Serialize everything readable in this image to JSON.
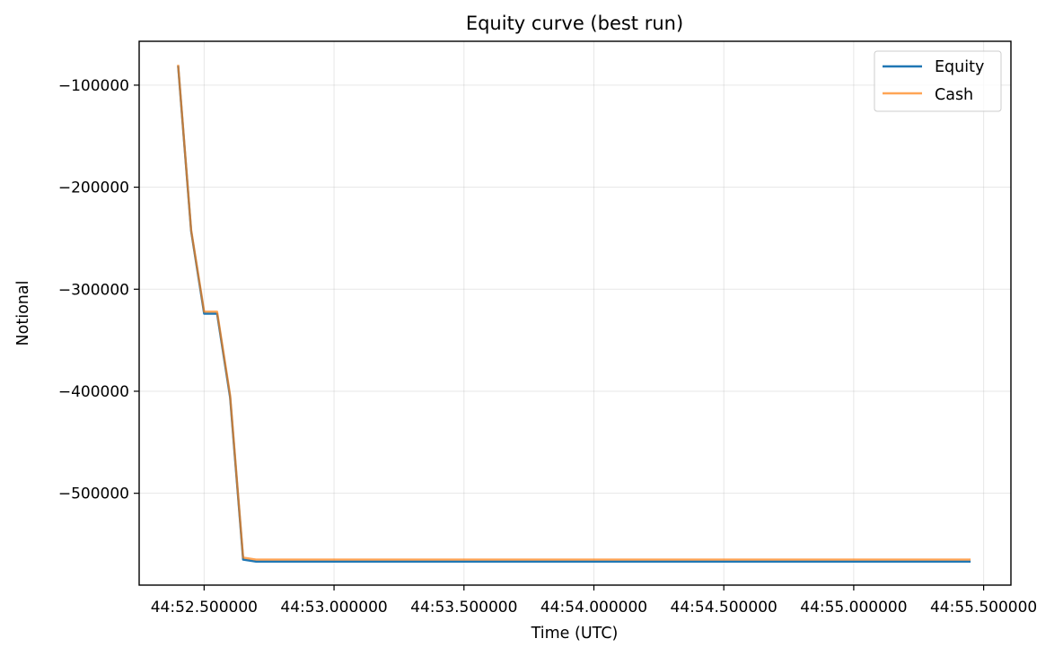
{
  "chart_data": {
    "type": "line",
    "title": "Equity curve (best run)",
    "xlabel": "Time (UTC)",
    "ylabel": "Notional",
    "x_ticks": [
      {
        "value": 52.5,
        "label": "44:52.500000"
      },
      {
        "value": 53.0,
        "label": "44:53.000000"
      },
      {
        "value": 53.5,
        "label": "44:53.500000"
      },
      {
        "value": 54.0,
        "label": "44:54.000000"
      },
      {
        "value": 54.5,
        "label": "44:54.500000"
      },
      {
        "value": 55.0,
        "label": "44:55.000000"
      },
      {
        "value": 55.5,
        "label": "44:55.500000"
      }
    ],
    "y_ticks": [
      {
        "value": -100000,
        "label": "−100000"
      },
      {
        "value": -200000,
        "label": "−200000"
      },
      {
        "value": -300000,
        "label": "−300000"
      },
      {
        "value": -400000,
        "label": "−400000"
      },
      {
        "value": -500000,
        "label": "−500000"
      }
    ],
    "xlim": [
      52.25,
      55.605
    ],
    "ylim": [
      -590000,
      -57000
    ],
    "grid": true,
    "legend_position": "top-right",
    "series": [
      {
        "name": "Equity",
        "color": "#1f77b4",
        "x": [
          52.4,
          52.45,
          52.5,
          52.55,
          52.6,
          52.65,
          52.7,
          52.75,
          55.45
        ],
        "y": [
          -81000,
          -243000,
          -324000,
          -324000,
          -406000,
          -565000,
          -567000,
          -567000,
          -567000
        ]
      },
      {
        "name": "Cash",
        "color": "#ff7f0e",
        "x": [
          52.4,
          52.45,
          52.5,
          52.55,
          52.6,
          52.65,
          52.7,
          52.75,
          55.45
        ],
        "y": [
          -80000,
          -242000,
          -322000,
          -322000,
          -404000,
          -563000,
          -565000,
          -565000,
          -565000
        ]
      }
    ]
  }
}
